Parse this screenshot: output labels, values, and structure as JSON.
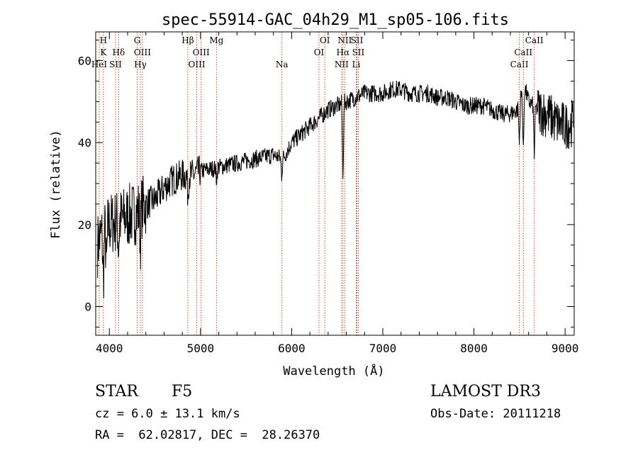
{
  "chart_data": {
    "type": "line",
    "title": "spec-55914-GAC_04h29_M1_sp05-106.fits",
    "xlabel": "Wavelength (Å)",
    "ylabel": "Flux (relative)",
    "xlim": [
      3850,
      9100
    ],
    "ylim": [
      -7,
      67
    ],
    "x_ticks": [
      4000,
      5000,
      6000,
      7000,
      8000,
      9000
    ],
    "x_tick_labels": [
      "4000",
      "5000",
      "6000",
      "7000",
      "8000",
      "9000"
    ],
    "y_ticks": [
      0,
      20,
      40,
      60
    ],
    "y_tick_labels": [
      "0",
      "20",
      "40",
      "60"
    ],
    "series": [
      {
        "name": "flux",
        "anchors_x": [
          3870,
          3900,
          3950,
          4000,
          4100,
          4200,
          4300,
          4400,
          4500,
          4600,
          4700,
          4800,
          4900,
          5000,
          5200,
          5400,
          5600,
          5800,
          5900,
          6000,
          6100,
          6200,
          6300,
          6400,
          6500,
          6600,
          6700,
          6800,
          6900,
          7000,
          7100,
          7200,
          7300,
          7400,
          7500,
          7600,
          7700,
          7800,
          7900,
          8000,
          8100,
          8200,
          8300,
          8400,
          8480,
          8550,
          8600,
          8700,
          8800,
          8900,
          9000,
          9090
        ],
        "anchors_y": [
          15,
          17,
          18,
          20,
          21,
          22,
          23,
          25,
          26,
          29,
          31,
          32,
          32,
          33,
          34,
          35,
          36,
          37,
          36,
          40,
          42,
          44,
          46,
          48,
          49,
          50,
          51,
          52,
          52,
          52,
          53,
          53,
          52,
          52,
          52,
          51,
          51,
          50,
          49,
          49,
          49,
          48,
          47,
          47,
          48,
          54,
          50,
          48,
          47,
          45,
          44,
          45
        ],
        "absorption_x": [
          3934,
          3968,
          4101,
          4340,
          4861,
          5175,
          5890,
          6563,
          8498,
          8542,
          8662
        ],
        "absorption_depth": [
          12,
          10,
          7,
          8,
          5,
          3,
          4,
          18,
          10,
          16,
          12
        ]
      }
    ],
    "line_markers": [
      {
        "wavelength": 3934,
        "labels": [
          "H",
          "K"
        ],
        "row": 0
      },
      {
        "wavelength": 3889,
        "labels": [
          "HeI"
        ],
        "row": 2
      },
      {
        "wavelength": 4068,
        "labels": [
          "SII"
        ],
        "row": 2
      },
      {
        "wavelength": 4102,
        "labels": [
          "Hδ"
        ],
        "row": 1
      },
      {
        "wavelength": 4305,
        "labels": [
          "G"
        ],
        "row": 0
      },
      {
        "wavelength": 4363,
        "labels": [
          "OIII"
        ],
        "row": 1
      },
      {
        "wavelength": 4340,
        "labels": [
          "Hγ"
        ],
        "row": 2
      },
      {
        "wavelength": 4861,
        "labels": [
          "Hβ"
        ],
        "row": 0
      },
      {
        "wavelength": 4959,
        "labels": [
          "OIII"
        ],
        "row": 2
      },
      {
        "wavelength": 5007,
        "labels": [
          "OIII"
        ],
        "row": 1
      },
      {
        "wavelength": 5175,
        "labels": [
          "Mg"
        ],
        "row": 0
      },
      {
        "wavelength": 5893,
        "labels": [
          "Na"
        ],
        "row": 2
      },
      {
        "wavelength": 6300,
        "labels": [
          "OI"
        ],
        "row": 1
      },
      {
        "wavelength": 6364,
        "labels": [
          "OI"
        ],
        "row": 0
      },
      {
        "wavelength": 6548,
        "labels": [
          "NII"
        ],
        "row": 2
      },
      {
        "wavelength": 6583,
        "labels": [
          "NII"
        ],
        "row": 0
      },
      {
        "wavelength": 6563,
        "labels": [
          "Hα"
        ],
        "row": 1
      },
      {
        "wavelength": 6716,
        "labels": [
          "SII"
        ],
        "row": 0
      },
      {
        "wavelength": 6731,
        "labels": [
          "SII"
        ],
        "row": 1
      },
      {
        "wavelength": 6708,
        "labels": [
          "Li"
        ],
        "row": 2
      },
      {
        "wavelength": 8498,
        "labels": [
          "CaII"
        ],
        "row": 2
      },
      {
        "wavelength": 8542,
        "labels": [
          "CaII"
        ],
        "row": 1
      },
      {
        "wavelength": 8662,
        "labels": [
          "CaII"
        ],
        "row": 0
      }
    ]
  },
  "info": {
    "object_class": "STAR",
    "subclass": "F5",
    "survey": "LAMOST DR3",
    "cz": "cz = 6.0 ± 13.1 km/s",
    "obs_date": "Obs-Date: 20111218",
    "coords": "RA =  62.02817, DEC =  28.26370"
  },
  "colors": {
    "line_marker": "#c0392b",
    "spectrum": "#000000",
    "axes": "#000000"
  }
}
